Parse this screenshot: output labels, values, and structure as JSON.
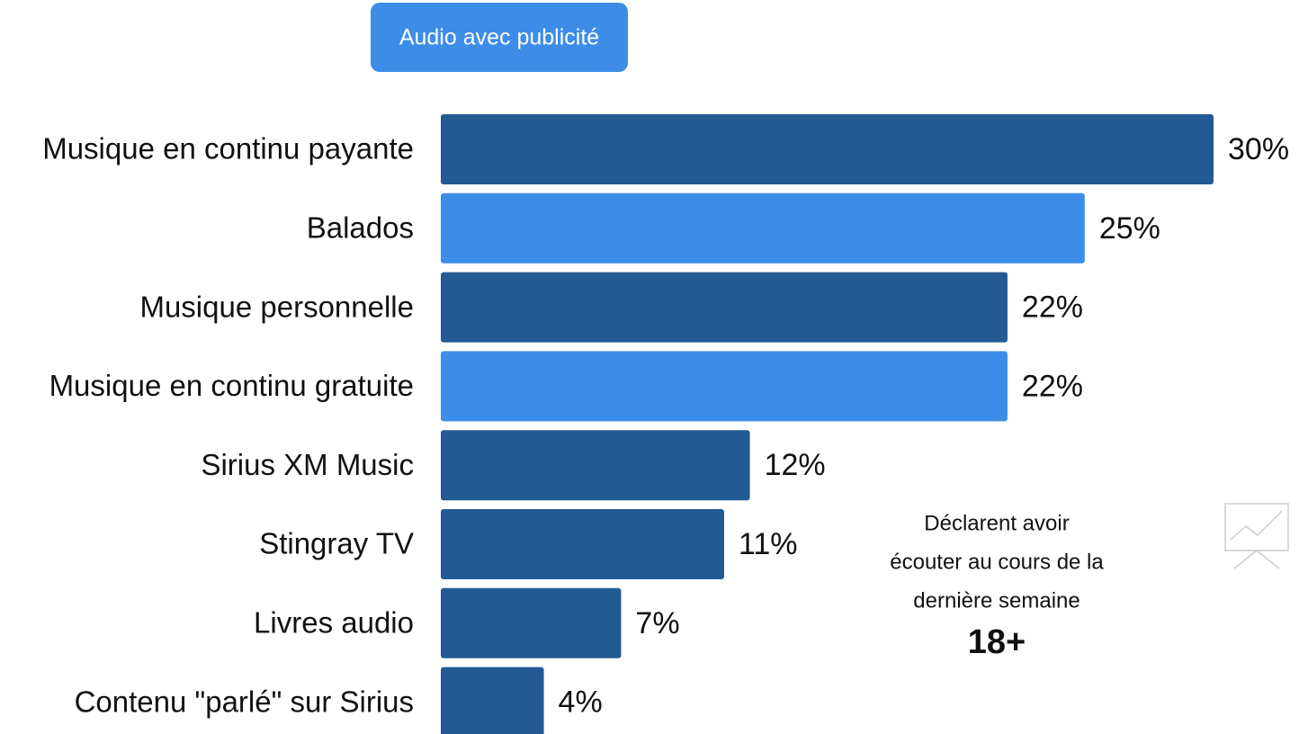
{
  "chart_data": {
    "type": "bar",
    "orientation": "horizontal",
    "legend": {
      "label": "Audio avec publicité",
      "color": "#3d8de8"
    },
    "categories": [
      "Musique en continu payante",
      "Balados",
      "Musique personnelle",
      "Musique en continu gratuite",
      "Sirius XM Music",
      "Stingray TV",
      "Livres audio",
      "Contenu \"parlé\" sur Sirius"
    ],
    "values": [
      30,
      25,
      22,
      22,
      12,
      11,
      7,
      4
    ],
    "value_labels": [
      "30%",
      "25%",
      "22%",
      "22%",
      "12%",
      "11%",
      "7%",
      "4%"
    ],
    "colors": [
      "#235a93",
      "#3d8de8",
      "#235a93",
      "#3d8de8",
      "#235a93",
      "#235a93",
      "#235a93",
      "#235a93"
    ],
    "annotation": {
      "lines": [
        "Déclarent avoir",
        "écouter au cours de la",
        "dernière semaine"
      ],
      "emphasis": "18+"
    }
  }
}
